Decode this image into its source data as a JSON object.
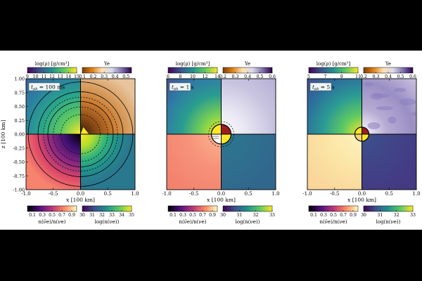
{
  "chart_data": [
    {
      "type": "heatmap",
      "panel_label": "t_pb = 100 ms",
      "label_main": "t",
      "label_sub": "pb",
      "label_value": "= 100 ms",
      "xlabel": "x [100 km]",
      "ylabel": "z [100 km]",
      "xlim": [
        -1.0,
        1.0
      ],
      "ylim": [
        -1.0,
        1.0
      ],
      "xticks": [
        "-1.0",
        "-0.5",
        "0.0",
        "0.5",
        "1.0"
      ],
      "yticks": [
        "1.00",
        "0.75",
        "0.50",
        "0.25",
        "0.00",
        "-0.25",
        "-0.50",
        "-0.75",
        "-1.00"
      ],
      "top_colorbars": [
        {
          "label": "log(ρ) [g/cm³]",
          "range": [
            9,
            15
          ],
          "ticks": [
            "9",
            "10",
            "11",
            "12",
            "13",
            "14",
            "15"
          ],
          "cmap": "viridis"
        },
        {
          "label": "Ye",
          "range": [
            0.1,
            0.55
          ],
          "ticks": [
            "0.1",
            "0.2",
            "0.3",
            "0.4",
            "0.5"
          ],
          "cmap": "puor"
        }
      ],
      "bottom_colorbars": [
        {
          "label": "n(ν̄e)/n(νe)",
          "range": [
            0.0,
            1.0
          ],
          "ticks": [
            "0.1",
            "0.3",
            "0.5",
            "0.7",
            "0.9"
          ],
          "cmap": "magma"
        },
        {
          "label": "log(n(νe))",
          "range": [
            30,
            35
          ],
          "ticks": [
            "30",
            "31",
            "32",
            "33",
            "34",
            "35"
          ],
          "cmap": "viridis"
        }
      ],
      "quadrant_fills": {
        "top_left": "#60b8a4",
        "top_right": "#c8782c",
        "bottom_left": "#f07a6a",
        "bottom_right": "#2a8a8c"
      }
    },
    {
      "type": "heatmap",
      "panel_label": "t_pb = 1 s",
      "label_main": "t",
      "label_sub": "pb",
      "label_value": "= 1 s",
      "xlabel": "x [100 km]",
      "ylabel": "",
      "xlim": [
        -1.0,
        1.0
      ],
      "ylim": [
        -1.0,
        1.0
      ],
      "xticks": [
        "-1.0",
        "-0.5",
        "0.0",
        "0.5",
        "1.0"
      ],
      "yticks": [],
      "top_colorbars": [
        {
          "label": "log(ρ) [g/cm³]",
          "range": [
            6,
            14
          ],
          "ticks": [
            "6",
            "8",
            "10",
            "12",
            "14"
          ],
          "cmap": "viridis"
        },
        {
          "label": "Ye",
          "range": [
            0.2,
            0.6
          ],
          "ticks": [
            "0.2",
            "0.3",
            "0.4",
            "0.5",
            "0.6"
          ],
          "cmap": "puor"
        }
      ],
      "bottom_colorbars": [
        {
          "label": "n(ν̄e)/n(νe)",
          "range": [
            0.0,
            1.0
          ],
          "ticks": [
            "0.1",
            "0.3",
            "0.5",
            "0.7",
            "0.9"
          ],
          "cmap": "magma"
        },
        {
          "label": "log(n(νe))",
          "range": [
            30,
            33
          ],
          "ticks": [
            "30",
            "31",
            "32",
            "33"
          ],
          "cmap": "viridis"
        }
      ],
      "quadrant_fills": {
        "top_left": "#3e93a8",
        "top_right": "#c9c6e2",
        "bottom_left": "#f5937a",
        "bottom_right": "#2f6f8e"
      }
    },
    {
      "type": "heatmap",
      "panel_label": "t_pb = 5 s",
      "label_main": "t",
      "label_sub": "pb",
      "label_value": "= 5 s",
      "xlabel": "x [100 km]",
      "ylabel": "",
      "xlim": [
        -1.0,
        1.0
      ],
      "ylim": [
        -1.0,
        1.0
      ],
      "xticks": [
        "-1.0",
        "-0.5",
        "0.0",
        "0.5",
        "1.0"
      ],
      "yticks": [],
      "top_colorbars": [
        {
          "label": "log(ρ) [g/cm³]",
          "range": [
            5,
            11
          ],
          "ticks": [
            "5",
            "7",
            "9",
            "11"
          ],
          "cmap": "viridis"
        },
        {
          "label": "Ye",
          "range": [
            0.2,
            0.6
          ],
          "ticks": [
            "0.2",
            "0.3",
            "0.4",
            "0.5",
            "0.6"
          ],
          "cmap": "puor"
        }
      ],
      "bottom_colorbars": [
        {
          "label": "n(ν̄e)/n(νe)",
          "range": [
            0.0,
            1.0
          ],
          "ticks": [
            "0.1",
            "0.3",
            "0.5",
            "0.7",
            "0.9"
          ],
          "cmap": "magma"
        },
        {
          "label": "log(n(νe))",
          "range": [
            30,
            33
          ],
          "ticks": [
            "30",
            "31",
            "32",
            "33"
          ],
          "cmap": "viridis"
        }
      ],
      "quadrant_fills": {
        "top_left": "#2f8aa8",
        "top_right": "#d4cfe6",
        "bottom_left": "#fbeab0",
        "bottom_right": "#3e3f8c"
      }
    }
  ]
}
